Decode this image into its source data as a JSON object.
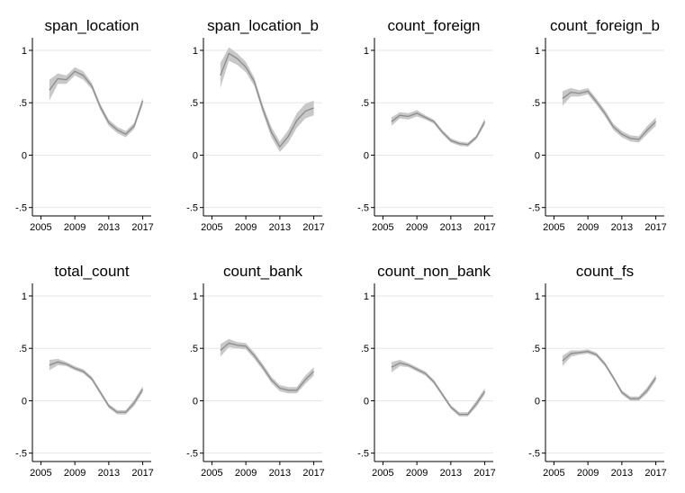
{
  "chart_data": [
    {
      "type": "line",
      "title": "span_location",
      "x": [
        2006,
        2007,
        2008,
        2009,
        2010,
        2011,
        2012,
        2013,
        2014,
        2015,
        2016,
        2017
      ],
      "series": [
        {
          "values": [
            0.62,
            0.73,
            0.72,
            0.8,
            0.76,
            0.66,
            0.46,
            0.31,
            0.24,
            0.2,
            0.28,
            0.52
          ],
          "lower": [
            0.52,
            0.68,
            0.68,
            0.76,
            0.72,
            0.63,
            0.43,
            0.28,
            0.21,
            0.17,
            0.25,
            0.48
          ],
          "upper": [
            0.72,
            0.78,
            0.76,
            0.84,
            0.8,
            0.69,
            0.49,
            0.34,
            0.27,
            0.23,
            0.31,
            0.55
          ]
        }
      ],
      "xlim": [
        2004,
        2018
      ],
      "ylim": [
        -0.58,
        1.12
      ],
      "xticks": [
        2005,
        2009,
        2013,
        2017
      ],
      "xtick_labels": [
        "2005",
        "2009",
        "2013",
        "2017"
      ],
      "yticks": [
        1,
        0.5,
        0,
        -0.5
      ],
      "ytick_labels": [
        "1",
        ".5",
        "0",
        "-.5"
      ],
      "grid": true
    },
    {
      "type": "line",
      "title": "span_location_b",
      "x": [
        2006,
        2007,
        2008,
        2009,
        2010,
        2011,
        2012,
        2013,
        2014,
        2015,
        2016,
        2017
      ],
      "series": [
        {
          "values": [
            0.76,
            0.97,
            0.92,
            0.84,
            0.7,
            0.44,
            0.22,
            0.08,
            0.18,
            0.33,
            0.42,
            0.45
          ],
          "lower": [
            0.64,
            0.9,
            0.86,
            0.79,
            0.66,
            0.4,
            0.17,
            0.03,
            0.12,
            0.26,
            0.35,
            0.38
          ],
          "upper": [
            0.88,
            1.03,
            0.97,
            0.89,
            0.74,
            0.48,
            0.27,
            0.13,
            0.24,
            0.4,
            0.49,
            0.52
          ]
        }
      ],
      "xlim": [
        2004,
        2018
      ],
      "ylim": [
        -0.58,
        1.12
      ],
      "xticks": [
        2005,
        2009,
        2013,
        2017
      ],
      "xtick_labels": [
        "2005",
        "2009",
        "2013",
        "2017"
      ],
      "yticks": [
        1,
        0.5,
        0,
        -0.5
      ],
      "ytick_labels": [
        "1",
        ".5",
        "0",
        "-.5"
      ],
      "grid": true
    },
    {
      "type": "line",
      "title": "count_foreign",
      "x": [
        2006,
        2007,
        2008,
        2009,
        2010,
        2011,
        2012,
        2013,
        2014,
        2015,
        2016,
        2017
      ],
      "series": [
        {
          "values": [
            0.32,
            0.38,
            0.37,
            0.4,
            0.36,
            0.32,
            0.22,
            0.14,
            0.11,
            0.1,
            0.17,
            0.32
          ],
          "lower": [
            0.28,
            0.35,
            0.34,
            0.37,
            0.34,
            0.3,
            0.2,
            0.12,
            0.09,
            0.08,
            0.15,
            0.29
          ],
          "upper": [
            0.36,
            0.41,
            0.4,
            0.43,
            0.38,
            0.34,
            0.24,
            0.16,
            0.13,
            0.12,
            0.19,
            0.35
          ]
        }
      ],
      "xlim": [
        2004,
        2018
      ],
      "ylim": [
        -0.58,
        1.12
      ],
      "xticks": [
        2005,
        2009,
        2013,
        2017
      ],
      "xtick_labels": [
        "2005",
        "2009",
        "2013",
        "2017"
      ],
      "yticks": [
        1,
        0.5,
        0,
        -0.5
      ],
      "ytick_labels": [
        "1",
        ".5",
        "0",
        "-.5"
      ],
      "grid": true
    },
    {
      "type": "line",
      "title": "count_foreign_b",
      "x": [
        2006,
        2007,
        2008,
        2009,
        2010,
        2011,
        2012,
        2013,
        2014,
        2015,
        2016,
        2017
      ],
      "series": [
        {
          "values": [
            0.54,
            0.6,
            0.59,
            0.61,
            0.51,
            0.4,
            0.27,
            0.2,
            0.16,
            0.15,
            0.24,
            0.32
          ],
          "lower": [
            0.47,
            0.56,
            0.56,
            0.58,
            0.48,
            0.37,
            0.24,
            0.17,
            0.13,
            0.12,
            0.2,
            0.28
          ],
          "upper": [
            0.61,
            0.64,
            0.62,
            0.64,
            0.54,
            0.43,
            0.3,
            0.23,
            0.19,
            0.18,
            0.28,
            0.36
          ]
        }
      ],
      "xlim": [
        2004,
        2018
      ],
      "ylim": [
        -0.58,
        1.12
      ],
      "xticks": [
        2005,
        2009,
        2013,
        2017
      ],
      "xtick_labels": [
        "2005",
        "2009",
        "2013",
        "2017"
      ],
      "yticks": [
        1,
        0.5,
        0,
        -0.5
      ],
      "ytick_labels": [
        "1",
        ".5",
        "0",
        "-.5"
      ],
      "grid": true
    },
    {
      "type": "line",
      "title": "total_count",
      "x": [
        2006,
        2007,
        2008,
        2009,
        2010,
        2011,
        2012,
        2013,
        2014,
        2015,
        2016,
        2017
      ],
      "series": [
        {
          "values": [
            0.34,
            0.37,
            0.35,
            0.31,
            0.28,
            0.21,
            0.08,
            -0.05,
            -0.11,
            -0.11,
            -0.02,
            0.11
          ],
          "lower": [
            0.29,
            0.34,
            0.33,
            0.29,
            0.26,
            0.19,
            0.06,
            -0.07,
            -0.13,
            -0.13,
            -0.05,
            0.08
          ],
          "upper": [
            0.39,
            0.4,
            0.37,
            0.33,
            0.3,
            0.23,
            0.1,
            -0.03,
            -0.09,
            -0.09,
            0.01,
            0.14
          ]
        }
      ],
      "xlim": [
        2004,
        2018
      ],
      "ylim": [
        -0.58,
        1.12
      ],
      "xticks": [
        2005,
        2009,
        2013,
        2017
      ],
      "xtick_labels": [
        "2005",
        "2009",
        "2013",
        "2017"
      ],
      "yticks": [
        1,
        0.5,
        0,
        -0.5
      ],
      "ytick_labels": [
        "1",
        ".5",
        "0",
        "-.5"
      ],
      "grid": true
    },
    {
      "type": "line",
      "title": "count_bank",
      "x": [
        2006,
        2007,
        2008,
        2009,
        2010,
        2011,
        2012,
        2013,
        2014,
        2015,
        2016,
        2017
      ],
      "series": [
        {
          "values": [
            0.48,
            0.55,
            0.53,
            0.52,
            0.43,
            0.32,
            0.2,
            0.12,
            0.1,
            0.1,
            0.2,
            0.28
          ],
          "lower": [
            0.42,
            0.51,
            0.5,
            0.49,
            0.4,
            0.29,
            0.17,
            0.09,
            0.07,
            0.07,
            0.16,
            0.24
          ],
          "upper": [
            0.54,
            0.59,
            0.56,
            0.55,
            0.46,
            0.35,
            0.23,
            0.15,
            0.13,
            0.13,
            0.24,
            0.32
          ]
        }
      ],
      "xlim": [
        2004,
        2018
      ],
      "ylim": [
        -0.58,
        1.12
      ],
      "xticks": [
        2005,
        2009,
        2013,
        2017
      ],
      "xtick_labels": [
        "2005",
        "2009",
        "2013",
        "2017"
      ],
      "yticks": [
        1,
        0.5,
        0,
        -0.5
      ],
      "ytick_labels": [
        "1",
        ".5",
        "0",
        "-.5"
      ],
      "grid": true
    },
    {
      "type": "line",
      "title": "count_non_bank",
      "x": [
        2006,
        2007,
        2008,
        2009,
        2010,
        2011,
        2012,
        2013,
        2014,
        2015,
        2016,
        2017
      ],
      "series": [
        {
          "values": [
            0.32,
            0.36,
            0.34,
            0.3,
            0.26,
            0.18,
            0.06,
            -0.06,
            -0.13,
            -0.13,
            -0.03,
            0.09
          ],
          "lower": [
            0.27,
            0.33,
            0.32,
            0.28,
            0.24,
            0.16,
            0.04,
            -0.08,
            -0.15,
            -0.15,
            -0.06,
            0.06
          ],
          "upper": [
            0.37,
            0.39,
            0.36,
            0.32,
            0.28,
            0.2,
            0.08,
            -0.04,
            -0.11,
            -0.11,
            0.0,
            0.12
          ]
        }
      ],
      "xlim": [
        2004,
        2018
      ],
      "ylim": [
        -0.58,
        1.12
      ],
      "xticks": [
        2005,
        2009,
        2013,
        2017
      ],
      "xtick_labels": [
        "2005",
        "2009",
        "2013",
        "2017"
      ],
      "yticks": [
        1,
        0.5,
        0,
        -0.5
      ],
      "ytick_labels": [
        "1",
        ".5",
        "0",
        "-.5"
      ],
      "grid": true
    },
    {
      "type": "line",
      "title": "count_fs",
      "x": [
        2006,
        2007,
        2008,
        2009,
        2010,
        2011,
        2012,
        2013,
        2014,
        2015,
        2016,
        2017
      ],
      "series": [
        {
          "values": [
            0.38,
            0.45,
            0.46,
            0.47,
            0.44,
            0.35,
            0.22,
            0.08,
            0.02,
            0.02,
            0.1,
            0.22
          ],
          "lower": [
            0.33,
            0.42,
            0.44,
            0.45,
            0.42,
            0.33,
            0.2,
            0.06,
            0.0,
            0.0,
            0.07,
            0.19
          ],
          "upper": [
            0.43,
            0.48,
            0.48,
            0.49,
            0.46,
            0.37,
            0.24,
            0.1,
            0.04,
            0.04,
            0.13,
            0.25
          ]
        }
      ],
      "xlim": [
        2004,
        2018
      ],
      "ylim": [
        -0.58,
        1.12
      ],
      "xticks": [
        2005,
        2009,
        2013,
        2017
      ],
      "xtick_labels": [
        "2005",
        "2009",
        "2013",
        "2017"
      ],
      "yticks": [
        1,
        0.5,
        0,
        -0.5
      ],
      "ytick_labels": [
        "1",
        ".5",
        "0",
        "-.5"
      ],
      "grid": true
    }
  ]
}
